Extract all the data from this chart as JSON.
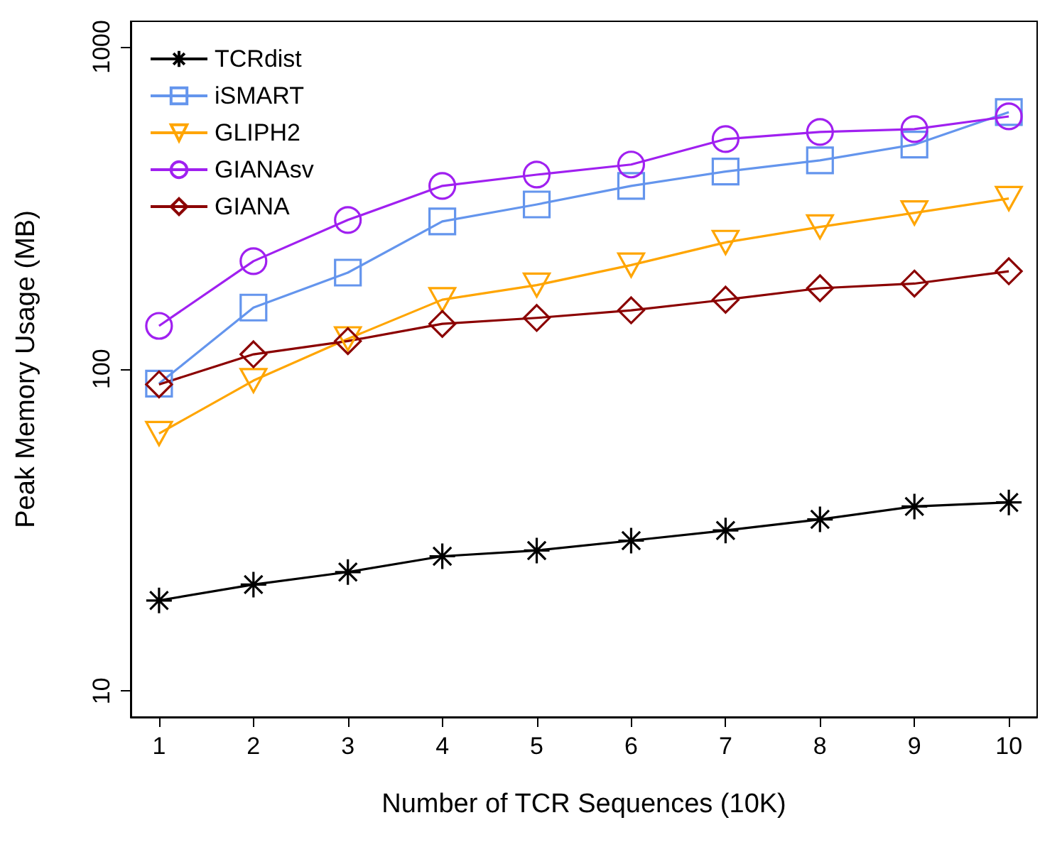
{
  "chart_data": {
    "type": "line",
    "xlabel": "Number of TCR Sequences (10K)",
    "ylabel": "Peak Memory Usage (MB)",
    "x": [
      1,
      2,
      3,
      4,
      5,
      6,
      7,
      8,
      9,
      10
    ],
    "xlim": [
      0.7,
      10.3
    ],
    "xticks": [
      1,
      2,
      3,
      4,
      5,
      6,
      7,
      8,
      9,
      10
    ],
    "ylim": [
      8.3,
      1200
    ],
    "yticks": [
      10,
      100,
      1000
    ],
    "log": "y",
    "grid": false,
    "legend": "top left",
    "line_style": "solid",
    "series": [
      {
        "name": "TCRdist",
        "color": "#000000",
        "marker": "cross",
        "values": [
          19.1,
          21.4,
          23.4,
          26.2,
          27.3,
          29.3,
          31.5,
          34.1,
          37.4,
          38.5
        ]
      },
      {
        "name": "iSMART",
        "color": "#6495ed",
        "marker": "square",
        "values": [
          90,
          155,
          199,
          287,
          324,
          370,
          410,
          444,
          497,
          627
        ]
      },
      {
        "name": "GLIPH2",
        "color": "#ffa500",
        "marker": "triangle",
        "values": [
          63,
          92,
          124,
          164,
          182,
          210,
          247,
          276,
          305,
          338
        ]
      },
      {
        "name": "GIANAsv",
        "color": "#a020f0",
        "marker": "circle",
        "values": [
          136,
          216,
          290,
          370,
          401,
          431,
          517,
          544,
          555,
          608
        ]
      },
      {
        "name": "GIANA",
        "color": "#8b0000",
        "marker": "diamond",
        "values": [
          89.5,
          111,
          122,
          138,
          144,
          152,
          164,
          178,
          184,
          201
        ]
      }
    ]
  }
}
